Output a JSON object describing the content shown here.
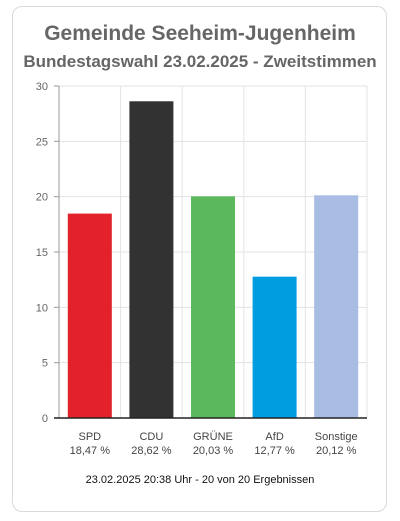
{
  "chart_data": {
    "type": "bar",
    "title": "Gemeinde Seeheim-Jugenheim",
    "subtitle": "Bundestagswahl 23.02.2025  - Zweitstimmen",
    "categories": [
      "SPD",
      "CDU",
      "GRÜNE",
      "AfD",
      "Sonstige"
    ],
    "values": [
      18.47,
      28.62,
      20.03,
      12.77,
      20.12
    ],
    "value_labels": [
      "18,47 %",
      "28,62 %",
      "20,03 %",
      "12,77 %",
      "20,12 %"
    ],
    "colors": [
      "#e3212b",
      "#323232",
      "#5cb85c",
      "#009ee0",
      "#a9bce3"
    ],
    "ylim": [
      0,
      30
    ],
    "yticks": [
      0,
      5,
      10,
      15,
      20,
      25,
      30
    ],
    "grid": true,
    "xlabel": "",
    "ylabel": ""
  },
  "footer": "23.02.2025 20:38 Uhr - 20 von 20 Ergebnissen"
}
